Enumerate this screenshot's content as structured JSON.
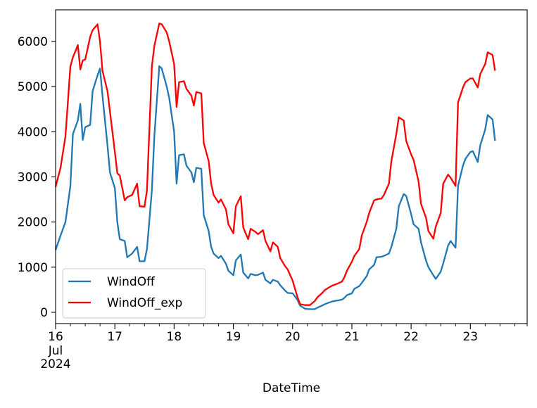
{
  "chart_data": {
    "type": "line",
    "title": "",
    "xlabel": "DateTime",
    "ylabel": "",
    "xlim": [
      "2024-07-16 00:00",
      "2024-07-23 23:00"
    ],
    "ylim": [
      -250,
      6700
    ],
    "yticks": [
      0,
      1000,
      2000,
      3000,
      4000,
      5000,
      6000
    ],
    "xticks": [
      {
        "label": "16",
        "sublabels": [
          "Jul",
          "2024"
        ],
        "x": "2024-07-16 00:00"
      },
      {
        "label": "17",
        "sublabels": [],
        "x": "2024-07-17 00:00"
      },
      {
        "label": "18",
        "sublabels": [],
        "x": "2024-07-18 00:00"
      },
      {
        "label": "19",
        "sublabels": [],
        "x": "2024-07-19 00:00"
      },
      {
        "label": "20",
        "sublabels": [],
        "x": "2024-07-20 00:00"
      },
      {
        "label": "21",
        "sublabels": [],
        "x": "2024-07-21 00:00"
      },
      {
        "label": "22",
        "sublabels": [],
        "x": "2024-07-22 00:00"
      },
      {
        "label": "23",
        "sublabels": [],
        "x": "2024-07-23 00:00"
      }
    ],
    "grid": false,
    "legend_position": "lower-left",
    "series": [
      {
        "name": "WindOff",
        "color": "#1f77b4",
        "points": [
          [
            "2024-07-16 00:00",
            1380
          ],
          [
            "2024-07-16 02:00",
            1700
          ],
          [
            "2024-07-16 04:00",
            2000
          ],
          [
            "2024-07-16 06:00",
            2800
          ],
          [
            "2024-07-16 07:00",
            3950
          ],
          [
            "2024-07-16 09:00",
            4250
          ],
          [
            "2024-07-16 10:00",
            4620
          ],
          [
            "2024-07-16 11:00",
            3820
          ],
          [
            "2024-07-16 12:00",
            4100
          ],
          [
            "2024-07-16 14:00",
            4150
          ],
          [
            "2024-07-16 15:00",
            4900
          ],
          [
            "2024-07-16 17:00",
            5250
          ],
          [
            "2024-07-16 18:00",
            5400
          ],
          [
            "2024-07-16 19:00",
            4800
          ],
          [
            "2024-07-16 21:00",
            3700
          ],
          [
            "2024-07-16 22:00",
            3100
          ],
          [
            "2024-07-17 00:00",
            2750
          ],
          [
            "2024-07-17 01:00",
            2000
          ],
          [
            "2024-07-17 02:00",
            1620
          ],
          [
            "2024-07-17 04:00",
            1580
          ],
          [
            "2024-07-17 05:00",
            1220
          ],
          [
            "2024-07-17 07:00",
            1300
          ],
          [
            "2024-07-17 09:00",
            1450
          ],
          [
            "2024-07-17 10:00",
            1130
          ],
          [
            "2024-07-17 12:00",
            1130
          ],
          [
            "2024-07-17 13:00",
            1400
          ],
          [
            "2024-07-17 15:00",
            2700
          ],
          [
            "2024-07-17 16:00",
            3900
          ],
          [
            "2024-07-17 18:00",
            5450
          ],
          [
            "2024-07-17 19:00",
            5400
          ],
          [
            "2024-07-17 21:00",
            5000
          ],
          [
            "2024-07-17 22:00",
            4750
          ],
          [
            "2024-07-18 00:00",
            4000
          ],
          [
            "2024-07-18 01:00",
            2850
          ],
          [
            "2024-07-18 02:00",
            3480
          ],
          [
            "2024-07-18 04:00",
            3500
          ],
          [
            "2024-07-18 05:00",
            3250
          ],
          [
            "2024-07-18 07:00",
            3100
          ],
          [
            "2024-07-18 08:00",
            2880
          ],
          [
            "2024-07-18 09:00",
            3200
          ],
          [
            "2024-07-18 11:00",
            3180
          ],
          [
            "2024-07-18 12:00",
            2150
          ],
          [
            "2024-07-18 14:00",
            1800
          ],
          [
            "2024-07-18 15:00",
            1450
          ],
          [
            "2024-07-18 16:00",
            1300
          ],
          [
            "2024-07-18 18:00",
            1200
          ],
          [
            "2024-07-18 19:00",
            1250
          ],
          [
            "2024-07-18 21:00",
            1080
          ],
          [
            "2024-07-18 22:00",
            920
          ],
          [
            "2024-07-19 00:00",
            820
          ],
          [
            "2024-07-19 01:00",
            1150
          ],
          [
            "2024-07-19 03:00",
            1280
          ],
          [
            "2024-07-19 04:00",
            880
          ],
          [
            "2024-07-19 06:00",
            750
          ],
          [
            "2024-07-19 07:00",
            850
          ],
          [
            "2024-07-19 09:00",
            820
          ],
          [
            "2024-07-19 10:00",
            830
          ],
          [
            "2024-07-19 12:00",
            880
          ],
          [
            "2024-07-19 13:00",
            720
          ],
          [
            "2024-07-19 15:00",
            640
          ],
          [
            "2024-07-19 16:00",
            720
          ],
          [
            "2024-07-19 18:00",
            680
          ],
          [
            "2024-07-19 19:00",
            600
          ],
          [
            "2024-07-19 21:00",
            480
          ],
          [
            "2024-07-19 22:00",
            430
          ],
          [
            "2024-07-20 00:00",
            420
          ],
          [
            "2024-07-20 02:00",
            270
          ],
          [
            "2024-07-20 03:00",
            150
          ],
          [
            "2024-07-20 05:00",
            80
          ],
          [
            "2024-07-20 07:00",
            70
          ],
          [
            "2024-07-20 09:00",
            70
          ],
          [
            "2024-07-20 10:00",
            100
          ],
          [
            "2024-07-20 12:00",
            150
          ],
          [
            "2024-07-20 13:00",
            180
          ],
          [
            "2024-07-20 15:00",
            220
          ],
          [
            "2024-07-20 16:00",
            240
          ],
          [
            "2024-07-20 18:00",
            260
          ],
          [
            "2024-07-20 20:00",
            280
          ],
          [
            "2024-07-20 21:00",
            320
          ],
          [
            "2024-07-20 22:00",
            380
          ],
          [
            "2024-07-21 00:00",
            420
          ],
          [
            "2024-07-21 01:00",
            520
          ],
          [
            "2024-07-21 03:00",
            580
          ],
          [
            "2024-07-21 04:00",
            650
          ],
          [
            "2024-07-21 06:00",
            800
          ],
          [
            "2024-07-21 07:00",
            950
          ],
          [
            "2024-07-21 09:00",
            1050
          ],
          [
            "2024-07-21 10:00",
            1220
          ],
          [
            "2024-07-21 12:00",
            1230
          ],
          [
            "2024-07-21 13:00",
            1250
          ],
          [
            "2024-07-21 15:00",
            1300
          ],
          [
            "2024-07-21 16:00",
            1450
          ],
          [
            "2024-07-21 18:00",
            1850
          ],
          [
            "2024-07-21 19:00",
            2350
          ],
          [
            "2024-07-21 21:00",
            2620
          ],
          [
            "2024-07-21 22:00",
            2580
          ],
          [
            "2024-07-22 00:00",
            2180
          ],
          [
            "2024-07-22 01:00",
            1950
          ],
          [
            "2024-07-22 03:00",
            1850
          ],
          [
            "2024-07-22 04:00",
            1550
          ],
          [
            "2024-07-22 06:00",
            1150
          ],
          [
            "2024-07-22 07:00",
            1000
          ],
          [
            "2024-07-22 09:00",
            820
          ],
          [
            "2024-07-22 10:00",
            740
          ],
          [
            "2024-07-22 12:00",
            900
          ],
          [
            "2024-07-22 13:00",
            1080
          ],
          [
            "2024-07-22 15:00",
            1480
          ],
          [
            "2024-07-22 16:00",
            1580
          ],
          [
            "2024-07-22 18:00",
            1430
          ],
          [
            "2024-07-22 19:00",
            2800
          ],
          [
            "2024-07-22 21:00",
            3250
          ],
          [
            "2024-07-22 22:00",
            3400
          ],
          [
            "2024-07-23 00:00",
            3550
          ],
          [
            "2024-07-23 01:00",
            3570
          ],
          [
            "2024-07-23 03:00",
            3330
          ],
          [
            "2024-07-23 04:00",
            3700
          ],
          [
            "2024-07-23 06:00",
            4050
          ],
          [
            "2024-07-23 07:00",
            4370
          ],
          [
            "2024-07-23 09:00",
            4270
          ],
          [
            "2024-07-23 10:00",
            3800
          ]
        ]
      },
      {
        "name": "WindOff_exp",
        "color": "#ff0000",
        "points": [
          [
            "2024-07-16 00:00",
            2780
          ],
          [
            "2024-07-16 02:00",
            3200
          ],
          [
            "2024-07-16 04:00",
            3900
          ],
          [
            "2024-07-16 06:00",
            5450
          ],
          [
            "2024-07-16 07:00",
            5650
          ],
          [
            "2024-07-16 09:00",
            5920
          ],
          [
            "2024-07-16 10:00",
            5380
          ],
          [
            "2024-07-16 11:00",
            5580
          ],
          [
            "2024-07-16 12:00",
            5600
          ],
          [
            "2024-07-16 14:00",
            6100
          ],
          [
            "2024-07-16 15:00",
            6250
          ],
          [
            "2024-07-16 17:00",
            6380
          ],
          [
            "2024-07-16 18:00",
            6000
          ],
          [
            "2024-07-16 19:00",
            5350
          ],
          [
            "2024-07-16 21:00",
            4900
          ],
          [
            "2024-07-16 22:00",
            4450
          ],
          [
            "2024-07-17 00:00",
            3550
          ],
          [
            "2024-07-17 01:00",
            3080
          ],
          [
            "2024-07-17 02:00",
            3030
          ],
          [
            "2024-07-17 04:00",
            2480
          ],
          [
            "2024-07-17 05:00",
            2550
          ],
          [
            "2024-07-17 07:00",
            2600
          ],
          [
            "2024-07-17 09:00",
            2850
          ],
          [
            "2024-07-17 10:00",
            2350
          ],
          [
            "2024-07-17 12:00",
            2340
          ],
          [
            "2024-07-17 13:00",
            2700
          ],
          [
            "2024-07-17 15:00",
            5450
          ],
          [
            "2024-07-17 16:00",
            5900
          ],
          [
            "2024-07-17 18:00",
            6400
          ],
          [
            "2024-07-17 19:00",
            6380
          ],
          [
            "2024-07-17 21:00",
            6200
          ],
          [
            "2024-07-17 22:00",
            6000
          ],
          [
            "2024-07-18 00:00",
            5500
          ],
          [
            "2024-07-18 01:00",
            4550
          ],
          [
            "2024-07-18 02:00",
            5100
          ],
          [
            "2024-07-18 04:00",
            5120
          ],
          [
            "2024-07-18 05:00",
            4950
          ],
          [
            "2024-07-18 07:00",
            4800
          ],
          [
            "2024-07-18 08:00",
            4580
          ],
          [
            "2024-07-18 09:00",
            4880
          ],
          [
            "2024-07-18 11:00",
            4850
          ],
          [
            "2024-07-18 12:00",
            3750
          ],
          [
            "2024-07-18 14:00",
            3350
          ],
          [
            "2024-07-18 15:00",
            2850
          ],
          [
            "2024-07-18 16:00",
            2600
          ],
          [
            "2024-07-18 18:00",
            2430
          ],
          [
            "2024-07-18 19:00",
            2500
          ],
          [
            "2024-07-18 21:00",
            2280
          ],
          [
            "2024-07-18 22:00",
            1950
          ],
          [
            "2024-07-19 00:00",
            1750
          ],
          [
            "2024-07-19 01:00",
            2350
          ],
          [
            "2024-07-19 03:00",
            2570
          ],
          [
            "2024-07-19 04:00",
            1880
          ],
          [
            "2024-07-19 06:00",
            1620
          ],
          [
            "2024-07-19 07:00",
            1850
          ],
          [
            "2024-07-19 09:00",
            1780
          ],
          [
            "2024-07-19 10:00",
            1730
          ],
          [
            "2024-07-19 12:00",
            1820
          ],
          [
            "2024-07-19 13:00",
            1580
          ],
          [
            "2024-07-19 15:00",
            1350
          ],
          [
            "2024-07-19 16:00",
            1550
          ],
          [
            "2024-07-19 18:00",
            1450
          ],
          [
            "2024-07-19 19:00",
            1200
          ],
          [
            "2024-07-19 21:00",
            1020
          ],
          [
            "2024-07-19 22:00",
            950
          ],
          [
            "2024-07-20 00:00",
            700
          ],
          [
            "2024-07-20 02:00",
            330
          ],
          [
            "2024-07-20 03:00",
            180
          ],
          [
            "2024-07-20 05:00",
            160
          ],
          [
            "2024-07-20 07:00",
            160
          ],
          [
            "2024-07-20 09:00",
            250
          ],
          [
            "2024-07-20 10:00",
            330
          ],
          [
            "2024-07-20 12:00",
            430
          ],
          [
            "2024-07-20 13:00",
            490
          ],
          [
            "2024-07-20 15:00",
            560
          ],
          [
            "2024-07-20 16:00",
            590
          ],
          [
            "2024-07-20 18:00",
            630
          ],
          [
            "2024-07-20 20:00",
            680
          ],
          [
            "2024-07-20 21:00",
            780
          ],
          [
            "2024-07-20 22:00",
            920
          ],
          [
            "2024-07-21 00:00",
            1120
          ],
          [
            "2024-07-21 01:00",
            1250
          ],
          [
            "2024-07-21 03:00",
            1400
          ],
          [
            "2024-07-21 04:00",
            1700
          ],
          [
            "2024-07-21 06:00",
            2000
          ],
          [
            "2024-07-21 07:00",
            2200
          ],
          [
            "2024-07-21 09:00",
            2480
          ],
          [
            "2024-07-21 10:00",
            2500
          ],
          [
            "2024-07-21 12:00",
            2520
          ],
          [
            "2024-07-21 13:00",
            2600
          ],
          [
            "2024-07-21 15:00",
            2850
          ],
          [
            "2024-07-21 16:00",
            3350
          ],
          [
            "2024-07-21 18:00",
            3950
          ],
          [
            "2024-07-21 19:00",
            4320
          ],
          [
            "2024-07-21 21:00",
            4250
          ],
          [
            "2024-07-21 22:00",
            3800
          ],
          [
            "2024-07-22 00:00",
            3500
          ],
          [
            "2024-07-22 01:00",
            3380
          ],
          [
            "2024-07-22 03:00",
            2900
          ],
          [
            "2024-07-22 04:00",
            2400
          ],
          [
            "2024-07-22 06:00",
            2100
          ],
          [
            "2024-07-22 07:00",
            1800
          ],
          [
            "2024-07-22 09:00",
            1630
          ],
          [
            "2024-07-22 10:00",
            1900
          ],
          [
            "2024-07-22 12:00",
            2200
          ],
          [
            "2024-07-22 13:00",
            2850
          ],
          [
            "2024-07-22 15:00",
            3050
          ],
          [
            "2024-07-22 16:00",
            2980
          ],
          [
            "2024-07-22 18:00",
            2800
          ],
          [
            "2024-07-22 19:00",
            4650
          ],
          [
            "2024-07-22 21:00",
            4980
          ],
          [
            "2024-07-22 22:00",
            5100
          ],
          [
            "2024-07-23 00:00",
            5180
          ],
          [
            "2024-07-23 01:00",
            5180
          ],
          [
            "2024-07-23 03:00",
            4980
          ],
          [
            "2024-07-23 04:00",
            5280
          ],
          [
            "2024-07-23 06:00",
            5500
          ],
          [
            "2024-07-23 07:00",
            5760
          ],
          [
            "2024-07-23 09:00",
            5700
          ],
          [
            "2024-07-23 10:00",
            5350
          ]
        ]
      }
    ]
  }
}
